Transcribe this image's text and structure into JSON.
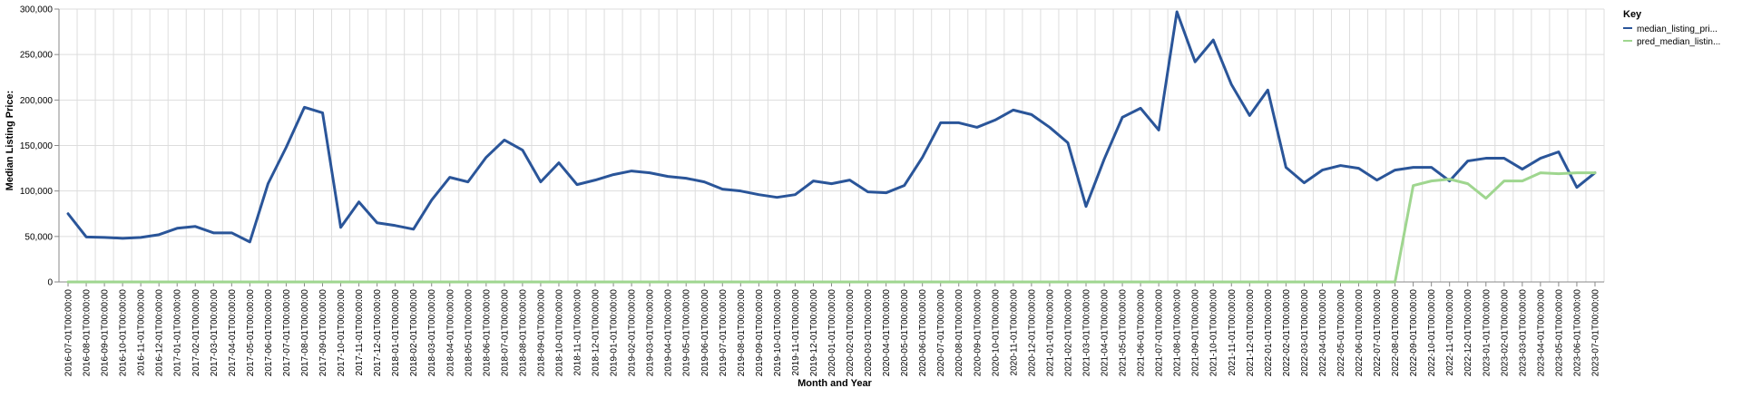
{
  "chart_data": {
    "type": "line",
    "xlabel": "Month and Year",
    "ylabel": "Median Listing Price:",
    "ylim": [
      0,
      300000
    ],
    "yticks": [
      "0",
      "50,000",
      "100,000",
      "150,000",
      "200,000",
      "250,000",
      "300,000"
    ],
    "ytick_values": [
      0,
      50000,
      100000,
      150000,
      200000,
      250000,
      300000
    ],
    "grid": true,
    "legend": {
      "title": "Key",
      "placement": "top-right"
    },
    "x": [
      "2016-07-01T00:00:00",
      "2016-08-01T00:00:00",
      "2016-09-01T00:00:00",
      "2016-10-01T00:00:00",
      "2016-11-01T00:00:00",
      "2016-12-01T00:00:00",
      "2017-01-01T00:00:00",
      "2017-02-01T00:00:00",
      "2017-03-01T00:00:00",
      "2017-04-01T00:00:00",
      "2017-05-01T00:00:00",
      "2017-06-01T00:00:00",
      "2017-07-01T00:00:00",
      "2017-08-01T00:00:00",
      "2017-09-01T00:00:00",
      "2017-10-01T00:00:00",
      "2017-11-01T00:00:00",
      "2017-12-01T00:00:00",
      "2018-01-01T00:00:00",
      "2018-02-01T00:00:00",
      "2018-03-01T00:00:00",
      "2018-04-01T00:00:00",
      "2018-05-01T00:00:00",
      "2018-06-01T00:00:00",
      "2018-07-01T00:00:00",
      "2018-08-01T00:00:00",
      "2018-09-01T00:00:00",
      "2018-10-01T00:00:00",
      "2018-11-01T00:00:00",
      "2018-12-01T00:00:00",
      "2019-01-01T00:00:00",
      "2019-02-01T00:00:00",
      "2019-03-01T00:00:00",
      "2019-04-01T00:00:00",
      "2019-05-01T00:00:00",
      "2019-06-01T00:00:00",
      "2019-07-01T00:00:00",
      "2019-08-01T00:00:00",
      "2019-09-01T00:00:00",
      "2019-10-01T00:00:00",
      "2019-11-01T00:00:00",
      "2019-12-01T00:00:00",
      "2020-01-01T00:00:00",
      "2020-02-01T00:00:00",
      "2020-03-01T00:00:00",
      "2020-04-01T00:00:00",
      "2020-05-01T00:00:00",
      "2020-06-01T00:00:00",
      "2020-07-01T00:00:00",
      "2020-08-01T00:00:00",
      "2020-09-01T00:00:00",
      "2020-10-01T00:00:00",
      "2020-11-01T00:00:00",
      "2020-12-01T00:00:00",
      "2021-01-01T00:00:00",
      "2021-02-01T00:00:00",
      "2021-03-01T00:00:00",
      "2021-04-01T00:00:00",
      "2021-05-01T00:00:00",
      "2021-06-01T00:00:00",
      "2021-07-01T00:00:00",
      "2021-08-01T00:00:00",
      "2021-09-01T00:00:00",
      "2021-10-01T00:00:00",
      "2021-11-01T00:00:00",
      "2021-12-01T00:00:00",
      "2022-01-01T00:00:00",
      "2022-02-01T00:00:00",
      "2022-03-01T00:00:00",
      "2022-04-01T00:00:00",
      "2022-05-01T00:00:00",
      "2022-06-01T00:00:00",
      "2022-07-01T00:00:00",
      "2022-08-01T00:00:00",
      "2022-09-01T00:00:00",
      "2022-10-01T00:00:00",
      "2022-11-01T00:00:00",
      "2022-12-01T00:00:00",
      "2023-01-01T00:00:00",
      "2023-02-01T00:00:00",
      "2023-03-01T00:00:00",
      "2023-04-01T00:00:00",
      "2023-05-01T00:00:00",
      "2023-06-01T00:00:00",
      "2023-07-01T00:00:00"
    ],
    "series": [
      {
        "name": "median_listing_pri...",
        "color": "#2a5599",
        "values": [
          75000,
          49500,
          49000,
          48000,
          49000,
          52000,
          59000,
          61000,
          54000,
          54000,
          44000,
          108000,
          148000,
          192000,
          186000,
          60000,
          88000,
          65000,
          62000,
          58000,
          90000,
          115000,
          110000,
          137000,
          156000,
          145000,
          110000,
          131000,
          107000,
          112000,
          118000,
          122000,
          120000,
          116000,
          114000,
          110000,
          102000,
          100000,
          96000,
          93000,
          96000,
          111000,
          108000,
          112000,
          99000,
          98000,
          106000,
          137000,
          175000,
          175000,
          170000,
          178000,
          189000,
          184000,
          170000,
          153000,
          83000,
          135000,
          181000,
          191000,
          167000,
          297000,
          242000,
          266000,
          217000,
          183000,
          211000,
          126000,
          109000,
          123000,
          128000,
          125000,
          112000,
          123000,
          126000,
          126000,
          111000,
          133000,
          136000,
          136000,
          124000,
          136000,
          143000,
          104000,
          120000
        ]
      },
      {
        "name": "pred_median_listin...",
        "color": "#9fd68f",
        "values": [
          0,
          0,
          0,
          0,
          0,
          0,
          0,
          0,
          0,
          0,
          0,
          0,
          0,
          0,
          0,
          0,
          0,
          0,
          0,
          0,
          0,
          0,
          0,
          0,
          0,
          0,
          0,
          0,
          0,
          0,
          0,
          0,
          0,
          0,
          0,
          0,
          0,
          0,
          0,
          0,
          0,
          0,
          0,
          0,
          0,
          0,
          0,
          0,
          0,
          0,
          0,
          0,
          0,
          0,
          0,
          0,
          0,
          0,
          0,
          0,
          0,
          0,
          0,
          0,
          0,
          0,
          0,
          0,
          0,
          0,
          0,
          0,
          0,
          0,
          106000,
          111000,
          113000,
          108000,
          92000,
          111000,
          111000,
          120000,
          119000,
          120000,
          120000
        ]
      }
    ]
  }
}
